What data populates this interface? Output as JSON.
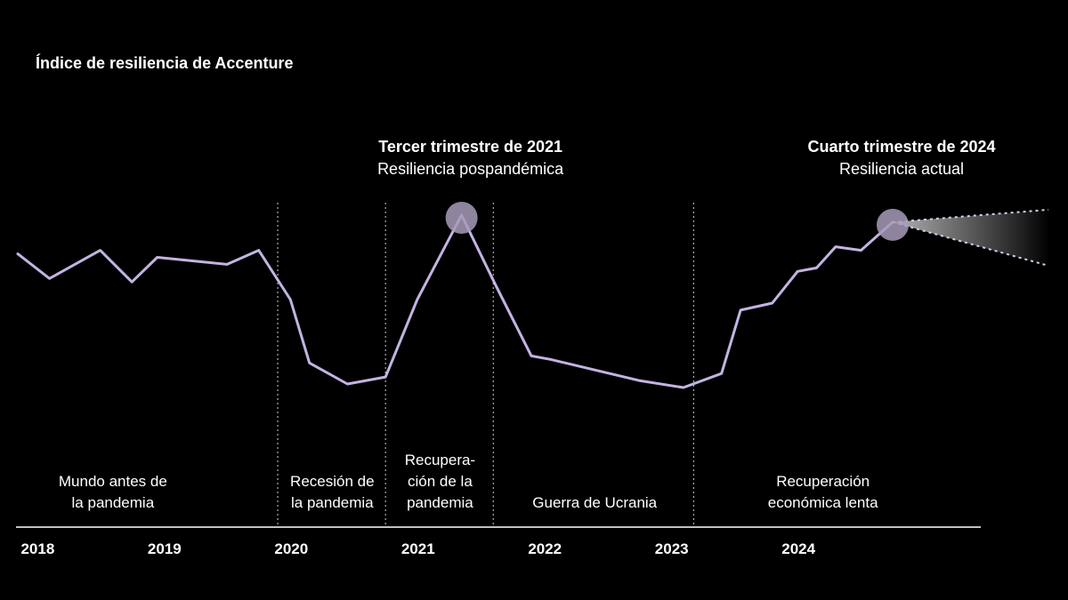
{
  "chart_data": {
    "type": "line",
    "title": "Índice de resiliencia de Accenture",
    "xlabel": "",
    "ylabel": "",
    "x_range": [
      2017.85,
      2025.15
    ],
    "grid": false,
    "line_color": "#c3b3e2",
    "marker_color": "#a79bba",
    "year_ticks": [
      {
        "label": "2018",
        "x": 2018.0
      },
      {
        "label": "2019",
        "x": 2019.0
      },
      {
        "label": "2020",
        "x": 2020.0
      },
      {
        "label": "2021",
        "x": 2021.0
      },
      {
        "label": "2022",
        "x": 2022.0
      },
      {
        "label": "2023",
        "x": 2023.0
      },
      {
        "label": "2024",
        "x": 2024.0
      }
    ],
    "dividers": [
      2019.9,
      2020.75,
      2021.6,
      2023.18
    ],
    "phases": [
      {
        "lines": [
          "Mundo antes de",
          "la pandemia"
        ],
        "x": 2018.6
      },
      {
        "lines": [
          "Recesión de",
          "la pandemia"
        ],
        "x": 2020.33
      },
      {
        "lines": [
          "Recupera-",
          "ción de la",
          "pandemia"
        ],
        "x": 2021.18
      },
      {
        "lines": [
          "Guerra de Ucrania"
        ],
        "x": 2022.4
      },
      {
        "lines": [
          "Recuperación",
          "económica lenta"
        ],
        "x": 2024.2
      }
    ],
    "series": [
      {
        "values": [
          {
            "x": 2017.85,
            "y": 71
          },
          {
            "x": 2018.1,
            "y": 64
          },
          {
            "x": 2018.5,
            "y": 72
          },
          {
            "x": 2018.75,
            "y": 63
          },
          {
            "x": 2018.95,
            "y": 70
          },
          {
            "x": 2019.5,
            "y": 68
          },
          {
            "x": 2019.75,
            "y": 72
          },
          {
            "x": 2020.0,
            "y": 58
          },
          {
            "x": 2020.15,
            "y": 40
          },
          {
            "x": 2020.45,
            "y": 34
          },
          {
            "x": 2020.75,
            "y": 36
          },
          {
            "x": 2021.0,
            "y": 58
          },
          {
            "x": 2021.35,
            "y": 82
          },
          {
            "x": 2021.62,
            "y": 62
          },
          {
            "x": 2021.9,
            "y": 42
          },
          {
            "x": 2022.05,
            "y": 41
          },
          {
            "x": 2022.4,
            "y": 38
          },
          {
            "x": 2022.75,
            "y": 35
          },
          {
            "x": 2023.1,
            "y": 33
          },
          {
            "x": 2023.4,
            "y": 37
          },
          {
            "x": 2023.55,
            "y": 55
          },
          {
            "x": 2023.8,
            "y": 57
          },
          {
            "x": 2024.0,
            "y": 66
          },
          {
            "x": 2024.15,
            "y": 67
          },
          {
            "x": 2024.3,
            "y": 73
          },
          {
            "x": 2024.5,
            "y": 72
          },
          {
            "x": 2024.75,
            "y": 80
          }
        ]
      }
    ],
    "highlights": [
      {
        "x": 2021.35,
        "y": 82,
        "title": "Tercer trimestre de 2021",
        "subtitle": "Resiliencia pospandémica"
      },
      {
        "x": 2024.75,
        "y": 80,
        "title": "Cuarto trimestre de 2024",
        "subtitle": "Resiliencia actual"
      }
    ]
  }
}
